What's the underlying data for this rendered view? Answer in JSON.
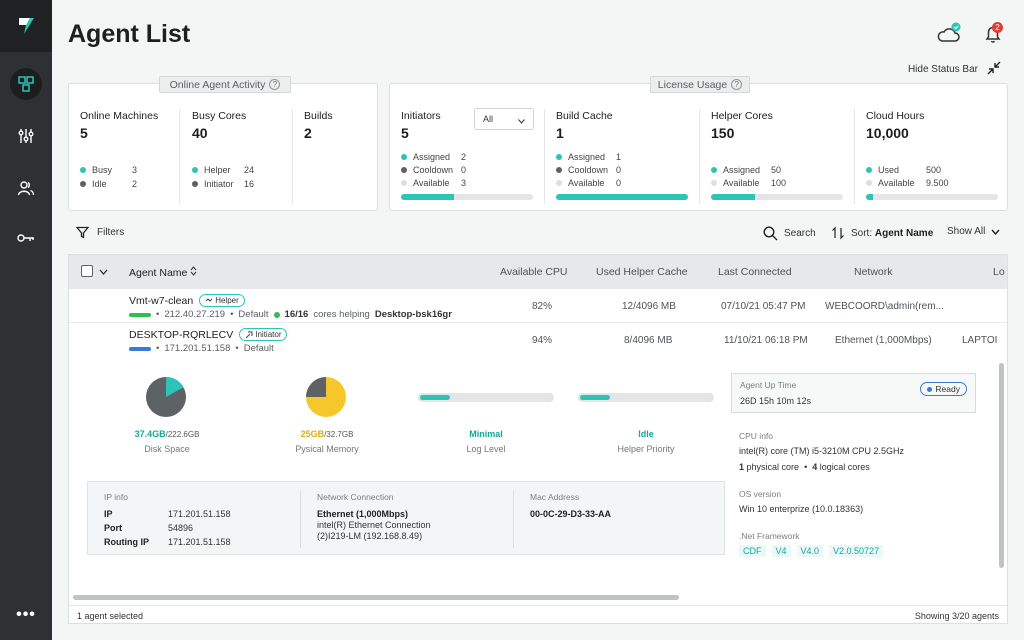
{
  "colors": {
    "teal": "#2dc3b7",
    "sidebar": "#2e3133",
    "green": "#2ec04a",
    "blue": "#3a7bd5",
    "yellow": "#f5c72b",
    "gray": "#5d6265",
    "red": "#e53935"
  },
  "header": {
    "title": "Agent List",
    "notification_count": "2",
    "hide_status_label": "Hide Status Bar"
  },
  "online_activity": {
    "tab_label": "Online Agent Activity",
    "cells": [
      {
        "title": "Online Machines",
        "value": "5",
        "legend": [
          {
            "label": "Busy",
            "value": "3"
          },
          {
            "label": "Idle",
            "value": "2"
          }
        ]
      },
      {
        "title": "Busy Cores",
        "value": "40",
        "legend": [
          {
            "label": "Helper",
            "value": "24"
          },
          {
            "label": "Initiator",
            "value": "16"
          }
        ]
      },
      {
        "title": "Builds",
        "value": "2"
      }
    ]
  },
  "license_usage": {
    "tab_label": "License Usage",
    "initiators": {
      "title": "Initiators",
      "value": "5",
      "filter": "All",
      "legend": [
        {
          "label": "Assigned",
          "value": "2"
        },
        {
          "label": "Cooldown",
          "value": "0"
        },
        {
          "label": "Available",
          "value": "3"
        }
      ],
      "usage_fraction": 0.4
    },
    "build_cache": {
      "title": "Build Cache",
      "value": "1",
      "legend": [
        {
          "label": "Assigned",
          "value": "1"
        },
        {
          "label": "Cooldown",
          "value": "0"
        },
        {
          "label": "Available",
          "value": "0"
        }
      ],
      "usage_fraction": 1.0
    },
    "helper_cores": {
      "title": "Helper Cores",
      "value": "150",
      "legend": [
        {
          "label": "Assigned",
          "value": "50"
        },
        {
          "label": "Available",
          "value": "100"
        }
      ],
      "usage_fraction": 0.33
    },
    "cloud_hours": {
      "title": "Cloud Hours",
      "value": "10,000",
      "legend": [
        {
          "label": "Used",
          "value": "500"
        },
        {
          "label": "Available",
          "value": "9.500"
        }
      ],
      "usage_fraction": 0.05
    }
  },
  "toolbar": {
    "filters": "Filters",
    "search": "Search",
    "sort_prefix": "Sort:",
    "sort_value": "Agent Name",
    "show_all": "Show All"
  },
  "table": {
    "columns": {
      "agent_name": "Agent Name",
      "available_cpu": "Available CPU",
      "used_helper_cache": "Used Helper Cache",
      "last_connected": "Last Connected",
      "network": "Network",
      "log": "Lo"
    },
    "rows": [
      {
        "name": "Vmt-w7-clean",
        "role": "Helper",
        "ip": "212.40.27.219",
        "group": "Default",
        "helping": "16/16",
        "helping_text": "cores helping",
        "helping_target": "Desktop-bsk16gr",
        "cpu": "82%",
        "cache": "12/4096 MB",
        "last_connected": "07/10/21 05:47 PM",
        "network": "WEBCOORD\\admin(rem...",
        "log": ""
      },
      {
        "name": "DESKTOP-RQRLECV",
        "role": "Initiator",
        "ip": "171.201.51.158",
        "group": "Default",
        "cpu": "94%",
        "cache": "8/4096 MB",
        "last_connected": "11/10/21 06:18 PM",
        "network": "Ethernet (1,000Mbps)",
        "log": "LAPTOI"
      }
    ]
  },
  "detail": {
    "disk": {
      "used": "37.4GB",
      "total": "/222.6GB",
      "label": "Disk Space",
      "fraction": 0.17
    },
    "memory": {
      "used": "25GB",
      "total": "/32.7GB",
      "label": "Pysical Memory",
      "fraction": 0.76
    },
    "log_level": {
      "value": "Minimal",
      "label": "Log Level",
      "fraction": 0.22
    },
    "helper_priority": {
      "value": "Idle",
      "label": "Helper Priority",
      "fraction": 0.22
    },
    "ip_info": {
      "heading": "IP info",
      "ip_label": "IP",
      "ip": "171.201.51.158",
      "port_label": "Port",
      "port": "54896",
      "routing_label": "Routing IP",
      "routing": "171.201.51.158"
    },
    "network_connection": {
      "heading": "Network Connection",
      "speed": "Ethernet (1,000Mbps)",
      "adapter_line1": "intel(R) Ethernet Connection",
      "adapter_line2": "(2)I219-LM (192.168.8.49)"
    },
    "mac": {
      "heading": "Mac Address",
      "value": "00-0C-29-D3-33-AA"
    },
    "uptime": {
      "heading": "Agent Up Time",
      "value": "26D 15h 10m 12s",
      "status": "Ready"
    },
    "cpu_info": {
      "heading": "CPU info",
      "model": "intel(R) core (TM) i5-3210M CPU 2.5GHz",
      "physical_count": "1",
      "physical_label": "physical core",
      "logical_count": "4",
      "logical_label": "logical cores"
    },
    "os": {
      "heading": "OS version",
      "value": "Win 10 enterprize (10.0.18363)"
    },
    "framework": {
      "heading": ".Net Framework",
      "tags": [
        "CDF",
        "V4",
        "V4.0",
        "V2.0.50727"
      ]
    }
  },
  "footer": {
    "selected": "1 agent selected",
    "showing": "Showing 3/20 agents"
  }
}
